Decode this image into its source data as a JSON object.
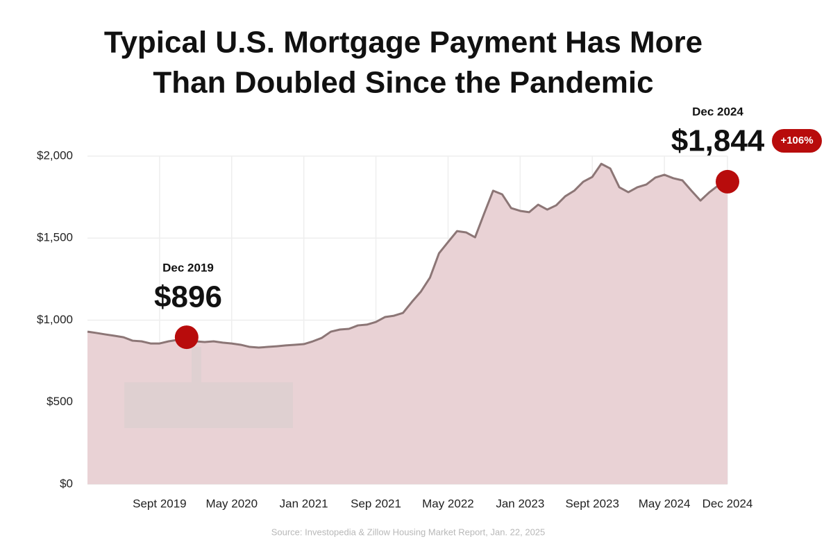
{
  "chart_data": {
    "type": "area",
    "title": [
      "Typical U.S. Mortgage Payment Has More",
      "Than Doubled Since the Pandemic"
    ],
    "source": "Source: Investopedia & Zillow Housing Market Report, Jan. 22, 2025",
    "x": [
      "2019-01",
      "2019-02",
      "2019-03",
      "2019-04",
      "2019-05",
      "2019-06",
      "2019-07",
      "2019-08",
      "2019-09",
      "2019-10",
      "2019-11",
      "2019-12",
      "2020-01",
      "2020-02",
      "2020-03",
      "2020-04",
      "2020-05",
      "2020-06",
      "2020-07",
      "2020-08",
      "2020-09",
      "2020-10",
      "2020-11",
      "2020-12",
      "2021-01",
      "2021-02",
      "2021-03",
      "2021-04",
      "2021-05",
      "2021-06",
      "2021-07",
      "2021-08",
      "2021-09",
      "2021-10",
      "2021-11",
      "2021-12",
      "2022-01",
      "2022-02",
      "2022-03",
      "2022-04",
      "2022-05",
      "2022-06",
      "2022-07",
      "2022-08",
      "2022-09",
      "2022-10",
      "2022-11",
      "2022-12",
      "2023-01",
      "2023-02",
      "2023-03",
      "2023-04",
      "2023-05",
      "2023-06",
      "2023-07",
      "2023-08",
      "2023-09",
      "2023-10",
      "2023-11",
      "2023-12",
      "2024-01",
      "2024-02",
      "2024-03",
      "2024-04",
      "2024-05",
      "2024-06",
      "2024-07",
      "2024-08",
      "2024-09",
      "2024-10",
      "2024-11",
      "2024-12"
    ],
    "values": [
      930,
      922,
      913,
      905,
      896,
      875,
      871,
      858,
      858,
      871,
      880,
      896,
      871,
      867,
      871,
      863,
      858,
      850,
      837,
      833,
      837,
      841,
      846,
      850,
      854,
      871,
      892,
      930,
      943,
      947,
      968,
      973,
      989,
      1019,
      1027,
      1044,
      1112,
      1175,
      1260,
      1408,
      1476,
      1543,
      1535,
      1505,
      1649,
      1789,
      1767,
      1683,
      1666,
      1658,
      1704,
      1674,
      1700,
      1755,
      1789,
      1844,
      1873,
      1953,
      1924,
      1810,
      1780,
      1810,
      1827,
      1869,
      1886,
      1865,
      1852,
      1789,
      1729,
      1780,
      1822,
      1844
    ],
    "value_labels": [
      null,
      null,
      null,
      null,
      null,
      null,
      null,
      null,
      null,
      null,
      null,
      "$896",
      null,
      null,
      null,
      null,
      null,
      null,
      null,
      null,
      null,
      null,
      null,
      null,
      null,
      null,
      null,
      null,
      null,
      null,
      null,
      null,
      null,
      null,
      null,
      null,
      null,
      null,
      null,
      null,
      null,
      null,
      null,
      null,
      null,
      null,
      null,
      null,
      null,
      null,
      null,
      null,
      null,
      null,
      null,
      null,
      null,
      null,
      null,
      null,
      null,
      null,
      null,
      null,
      null,
      null,
      null,
      null,
      null,
      null,
      null,
      "$1,844"
    ],
    "annotations": [
      {
        "x": "2019-12",
        "label": "Dec 2019"
      },
      {
        "x": "2024-12",
        "label": "Dec 2024",
        "change": "+106%"
      }
    ],
    "color": "#8c7676",
    "fill": "#e9d2d5",
    "point_color": "#b80c0c",
    "xlim": [
      "2019-01",
      "2024-12"
    ],
    "xticks": [
      {
        "value": "2019-09",
        "label": "Sept 2019"
      },
      {
        "value": "2020-05",
        "label": "May 2020"
      },
      {
        "value": "2021-01",
        "label": "Jan 2021"
      },
      {
        "value": "2021-09",
        "label": "Sep 2021"
      },
      {
        "value": "2022-05",
        "label": "May 2022"
      },
      {
        "value": "2023-01",
        "label": "Jan 2023"
      },
      {
        "value": "2023-09",
        "label": "Sept 2023"
      },
      {
        "value": "2024-05",
        "label": "May 2024"
      },
      {
        "value": "2024-12",
        "label": "Dec 2024"
      }
    ],
    "ylim": [
      0,
      2000
    ],
    "yticks": [
      {
        "value": 0,
        "label": "$0"
      },
      {
        "value": 500,
        "label": "$500"
      },
      {
        "value": 1000,
        "label": "$1,000"
      },
      {
        "value": 1500,
        "label": "$1,500"
      },
      {
        "value": 2000,
        "label": "$2,000"
      }
    ],
    "grid": true
  }
}
